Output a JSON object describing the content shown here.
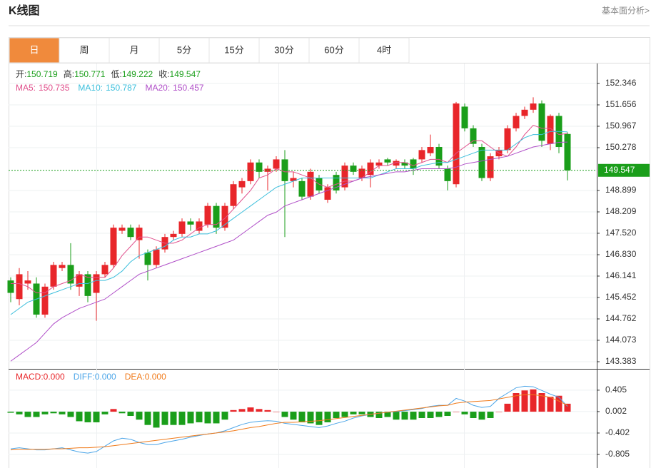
{
  "header": {
    "title": "K线图",
    "link": "基本面分析>"
  },
  "tabs": {
    "items": [
      "日",
      "周",
      "月",
      "5分",
      "15分",
      "30分",
      "60分",
      "4时"
    ],
    "active": 0
  },
  "chart_data": [
    {
      "type": "candlestick",
      "ohlc_labels": [
        "开:",
        "高:",
        "低:",
        "收:"
      ],
      "up_color": "#e8262a",
      "down_color": "#1a9e1a",
      "open": [
        146.0,
        145.4,
        145.9,
        145.9,
        144.9,
        145.8,
        146.4,
        146.5,
        145.8,
        146.2,
        145.6,
        146.2,
        146.5,
        147.6,
        147.7,
        147.3,
        146.9,
        146.5,
        147.0,
        147.4,
        147.5,
        147.9,
        147.6,
        147.8,
        148.4,
        147.7,
        148.4,
        149.0,
        149.2,
        149.8,
        149.5,
        149.6,
        149.9,
        149.2,
        149.2,
        148.7,
        149.3,
        148.6,
        149.4,
        149.0,
        149.7,
        149.3,
        149.4,
        149.7,
        149.9,
        149.7,
        149.8,
        149.9,
        149.9,
        150.1,
        150.3,
        149.6,
        149.1,
        151.6,
        150.9,
        150.3,
        149.3,
        150.0,
        150.2,
        150.9,
        151.3,
        151.5,
        151.7,
        150.4,
        151.3,
        150.719
      ],
      "high": [
        146.1,
        146.4,
        146.3,
        146.1,
        145.9,
        146.6,
        146.6,
        147.2,
        146.3,
        146.3,
        146.3,
        146.6,
        147.8,
        147.8,
        147.8,
        147.8,
        147.0,
        147.1,
        147.5,
        147.6,
        148.0,
        148.0,
        148.0,
        148.5,
        148.5,
        148.5,
        149.2,
        149.3,
        149.9,
        149.9,
        149.7,
        150.0,
        150.2,
        149.5,
        149.3,
        149.6,
        149.4,
        149.1,
        149.5,
        149.8,
        149.8,
        149.7,
        149.9,
        149.9,
        149.95,
        149.9,
        149.9,
        149.95,
        150.3,
        150.7,
        150.4,
        149.7,
        151.75,
        151.7,
        151.0,
        150.4,
        150.1,
        150.3,
        151.0,
        151.4,
        151.6,
        151.9,
        151.8,
        151.35,
        151.4,
        150.771
      ],
      "low": [
        145.3,
        145.2,
        145.7,
        144.8,
        144.8,
        145.7,
        146.3,
        145.7,
        145.5,
        145.3,
        144.7,
        146.1,
        146.4,
        147.5,
        147.3,
        146.7,
        146.0,
        146.4,
        146.9,
        147.3,
        147.4,
        147.6,
        147.5,
        147.7,
        147.5,
        147.6,
        148.3,
        148.8,
        149.1,
        149.3,
        148.9,
        149.5,
        147.4,
        149.0,
        148.6,
        148.6,
        148.8,
        148.5,
        148.8,
        148.9,
        149.4,
        149.2,
        149.0,
        149.6,
        149.7,
        149.6,
        149.6,
        149.4,
        149.8,
        150.0,
        149.6,
        148.9,
        149.0,
        150.8,
        150.3,
        149.2,
        149.2,
        149.9,
        150.1,
        150.8,
        151.2,
        151.4,
        150.3,
        150.2,
        150.1,
        149.222
      ],
      "close": [
        145.6,
        146.2,
        146.0,
        144.9,
        145.8,
        146.5,
        146.5,
        145.9,
        146.2,
        145.5,
        146.2,
        146.5,
        147.7,
        147.7,
        147.4,
        147.7,
        146.5,
        147.0,
        147.4,
        147.5,
        147.9,
        147.8,
        147.9,
        148.4,
        147.7,
        148.4,
        149.1,
        149.2,
        149.8,
        149.5,
        149.6,
        149.9,
        149.2,
        149.3,
        148.7,
        149.5,
        148.9,
        149.0,
        148.9,
        149.7,
        149.5,
        149.6,
        149.8,
        149.8,
        149.8,
        149.85,
        149.7,
        149.6,
        150.2,
        150.3,
        149.7,
        149.2,
        151.7,
        150.9,
        150.4,
        149.3,
        150.0,
        150.2,
        150.9,
        151.3,
        151.5,
        151.7,
        150.5,
        151.3,
        150.3,
        149.547
      ],
      "series": [
        {
          "name": "MA5:",
          "color": "#e0508c",
          "values": [
            145.9,
            145.9,
            145.8,
            145.6,
            145.6,
            145.8,
            145.9,
            146.0,
            146.2,
            146.1,
            146.1,
            146.1,
            146.4,
            146.8,
            147.1,
            147.4,
            147.4,
            147.3,
            147.2,
            147.2,
            147.3,
            147.5,
            147.7,
            147.8,
            147.8,
            148.0,
            148.3,
            148.6,
            148.9,
            149.3,
            149.4,
            149.6,
            149.5,
            149.5,
            149.4,
            149.3,
            149.1,
            149.0,
            149.1,
            149.2,
            149.2,
            149.3,
            149.5,
            149.7,
            149.7,
            149.8,
            149.8,
            149.7,
            149.8,
            149.9,
            149.9,
            149.8,
            150.1,
            150.3,
            150.5,
            150.5,
            150.3,
            150.1,
            150.0,
            150.3,
            150.7,
            151.0,
            150.9,
            150.9,
            150.7,
            150.735
          ]
        },
        {
          "name": "MA10:",
          "color": "#3cbfdc",
          "values": [
            144.9,
            145.1,
            145.3,
            145.4,
            145.5,
            145.6,
            145.7,
            145.8,
            145.9,
            145.9,
            146.0,
            146.0,
            146.1,
            146.3,
            146.6,
            146.8,
            146.9,
            147.0,
            147.1,
            147.3,
            147.4,
            147.4,
            147.5,
            147.5,
            147.6,
            147.8,
            148.0,
            148.2,
            148.4,
            148.6,
            148.8,
            149.0,
            149.1,
            149.2,
            149.3,
            149.3,
            149.3,
            149.3,
            149.3,
            149.3,
            149.3,
            149.3,
            149.3,
            149.4,
            149.5,
            149.6,
            149.6,
            149.6,
            149.7,
            149.75,
            149.8,
            149.8,
            149.9,
            150.0,
            150.1,
            150.2,
            150.2,
            150.2,
            150.2,
            150.4,
            150.6,
            150.7,
            150.7,
            150.8,
            150.8,
            150.787
          ]
        },
        {
          "name": "MA20:",
          "color": "#b04fc8",
          "values": [
            143.4,
            143.6,
            143.8,
            144.0,
            144.3,
            144.6,
            144.8,
            144.95,
            145.1,
            145.2,
            145.3,
            145.4,
            145.6,
            145.8,
            146.0,
            146.2,
            146.3,
            146.4,
            146.5,
            146.6,
            146.7,
            146.8,
            146.9,
            147.0,
            147.1,
            147.2,
            147.3,
            147.5,
            147.7,
            147.9,
            148.1,
            148.2,
            148.4,
            148.5,
            148.6,
            148.7,
            148.8,
            148.9,
            149.0,
            149.1,
            149.2,
            149.3,
            149.35,
            149.4,
            149.45,
            149.5,
            149.5,
            149.55,
            149.6,
            149.6,
            149.6,
            149.6,
            149.65,
            149.75,
            149.8,
            149.85,
            149.9,
            149.95,
            150.0,
            150.1,
            150.2,
            150.3,
            150.35,
            150.4,
            150.45,
            150.457
          ]
        }
      ],
      "ylim": [
        143.153,
        152.966
      ],
      "yticks": [
        152.346,
        151.656,
        150.967,
        150.278,
        148.899,
        148.209,
        {
          "value": 147.52,
          "label": "147.520"
        },
        {
          "value": 146.83,
          "label": "146.830"
        },
        146.141,
        145.452,
        144.762,
        144.073,
        143.383
      ],
      "grid": true
    },
    {
      "type": "macd",
      "legend": [
        {
          "label": "MACD:",
          "value": "0.000",
          "color": "#e8262a"
        },
        {
          "label": "DIFF:",
          "value": "0.000",
          "color": "#4da6e8"
        },
        {
          "label": "DEA:",
          "value": "0.000",
          "color": "#f07a1a"
        }
      ],
      "up_color": "#e8262a",
      "down_color": "#1a9e1a",
      "values": [
        -0.02,
        -0.05,
        -0.1,
        -0.1,
        -0.05,
        -0.03,
        -0.05,
        -0.1,
        -0.18,
        -0.2,
        -0.2,
        -0.05,
        0.05,
        -0.03,
        -0.08,
        -0.15,
        -0.25,
        -0.3,
        -0.25,
        -0.25,
        -0.25,
        -0.22,
        -0.2,
        -0.22,
        -0.22,
        -0.15,
        0.03,
        0.05,
        0.08,
        0.05,
        0.03,
        0.0,
        -0.1,
        -0.15,
        -0.2,
        -0.22,
        -0.25,
        -0.2,
        -0.12,
        -0.1,
        -0.05,
        -0.05,
        -0.1,
        -0.12,
        -0.1,
        -0.15,
        -0.15,
        -0.15,
        -0.12,
        -0.12,
        -0.1,
        -0.08,
        0.0,
        -0.05,
        -0.12,
        -0.15,
        -0.12,
        0.0,
        0.15,
        0.35,
        0.4,
        0.42,
        0.35,
        0.28,
        0.3,
        0.15
      ],
      "series": [
        {
          "name": "DIFF",
          "color": "#4da6e8",
          "values": [
            -0.7,
            -0.68,
            -0.7,
            -0.72,
            -0.72,
            -0.7,
            -0.68,
            -0.72,
            -0.76,
            -0.78,
            -0.75,
            -0.65,
            -0.55,
            -0.5,
            -0.52,
            -0.58,
            -0.62,
            -0.62,
            -0.58,
            -0.55,
            -0.52,
            -0.48,
            -0.45,
            -0.42,
            -0.4,
            -0.36,
            -0.3,
            -0.24,
            -0.2,
            -0.18,
            -0.17,
            -0.18,
            -0.22,
            -0.24,
            -0.26,
            -0.28,
            -0.3,
            -0.27,
            -0.22,
            -0.18,
            -0.12,
            -0.08,
            -0.05,
            -0.03,
            -0.01,
            0.0,
            0.02,
            0.04,
            0.06,
            0.1,
            0.12,
            0.12,
            0.25,
            0.2,
            0.12,
            0.08,
            0.1,
            0.25,
            0.35,
            0.45,
            0.48,
            0.47,
            0.4,
            0.33,
            0.27,
            0.1
          ]
        },
        {
          "name": "DEA",
          "color": "#f07a1a",
          "values": [
            -0.72,
            -0.71,
            -0.71,
            -0.71,
            -0.71,
            -0.7,
            -0.7,
            -0.69,
            -0.68,
            -0.68,
            -0.67,
            -0.66,
            -0.64,
            -0.62,
            -0.6,
            -0.58,
            -0.56,
            -0.54,
            -0.52,
            -0.5,
            -0.48,
            -0.46,
            -0.44,
            -0.42,
            -0.4,
            -0.38,
            -0.36,
            -0.33,
            -0.3,
            -0.28,
            -0.25,
            -0.22,
            -0.2,
            -0.2,
            -0.19,
            -0.18,
            -0.17,
            -0.15,
            -0.13,
            -0.11,
            -0.09,
            -0.07,
            -0.05,
            -0.03,
            -0.01,
            0.01,
            0.03,
            0.05,
            0.07,
            0.09,
            0.11,
            0.12,
            0.16,
            0.18,
            0.19,
            0.2,
            0.21,
            0.24,
            0.27,
            0.3,
            0.32,
            0.32,
            0.3,
            0.27,
            0.2,
            0.12
          ]
        }
      ],
      "ylim": [
        -0.98,
        0.78
      ],
      "yticks": [
        0.405,
        0.002,
        -0.402,
        -0.805
      ],
      "grid": true
    }
  ]
}
